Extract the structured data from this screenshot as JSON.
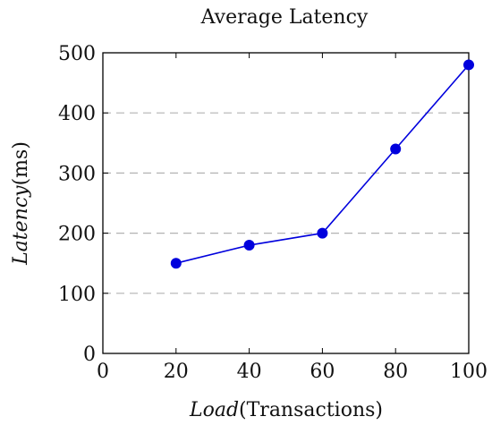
{
  "chart_data": {
    "type": "line",
    "title": "Average Latency",
    "xlabel": {
      "main": "Load",
      "unit": "(Transactions)"
    },
    "ylabel": {
      "main": "Latency",
      "unit": "(ms)"
    },
    "xlim": [
      0,
      100
    ],
    "ylim": [
      0,
      500
    ],
    "xticks": [
      0,
      20,
      40,
      60,
      80,
      100
    ],
    "yticks": [
      0,
      100,
      200,
      300,
      400,
      500
    ],
    "grid": "y-dashed",
    "series": [
      {
        "color": "#0000dd",
        "x": [
          20,
          40,
          60,
          80,
          100
        ],
        "y": [
          150,
          180,
          200,
          340,
          480
        ]
      }
    ]
  }
}
